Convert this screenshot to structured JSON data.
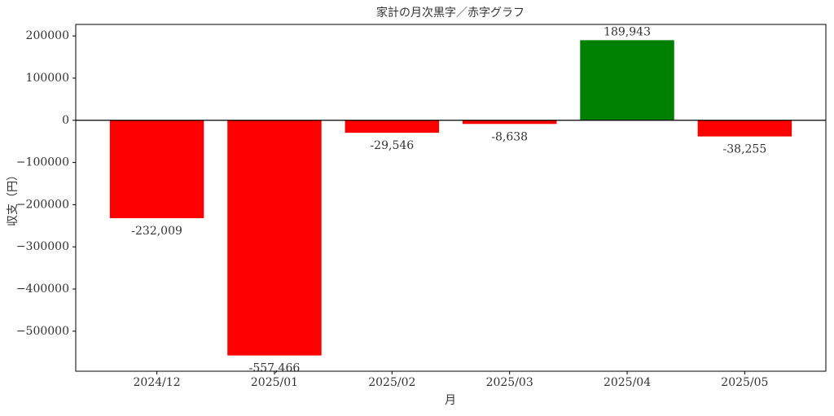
{
  "chart_data": {
    "type": "bar",
    "title": "家計の月次黒字／赤字グラフ",
    "x_label": "月",
    "y_label": "収支（円）",
    "categories": [
      "2024/12",
      "2025/01",
      "2025/02",
      "2025/03",
      "2025/04",
      "2025/05"
    ],
    "values": [
      -232009,
      -557466,
      -29546,
      -8638,
      189943,
      -38255
    ],
    "value_labels": [
      "-232,009",
      "-557,466",
      "-29,546",
      "-8,638",
      "189,943",
      "-38,255"
    ],
    "colors": [
      "#ff0000",
      "#ff0000",
      "#ff0000",
      "#ff0000",
      "#008000",
      "#ff0000"
    ],
    "ylim": [
      -594836,
      227313
    ],
    "yticks": [
      200000,
      100000,
      0,
      {
        "value": -100000,
        "label": "−100000"
      },
      {
        "value": -200000,
        "label": "−200000"
      },
      {
        "value": -300000,
        "label": "−300000"
      },
      {
        "value": -400000,
        "label": "−400000"
      },
      {
        "value": -500000,
        "label": "−500000"
      }
    ],
    "grid": false
  }
}
